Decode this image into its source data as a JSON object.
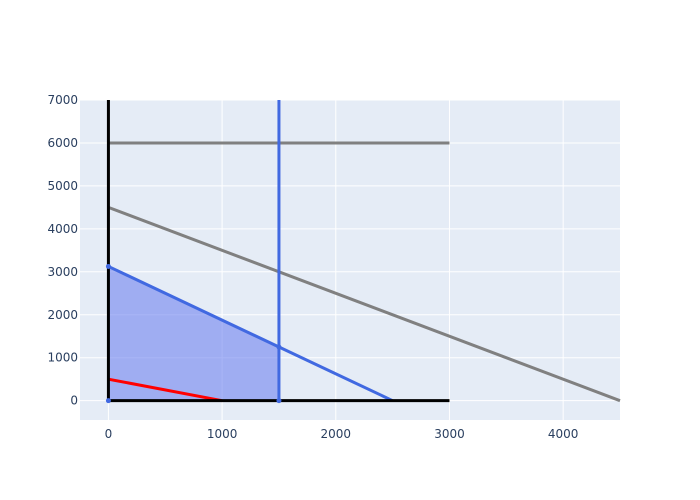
{
  "chart_data": {
    "type": "line",
    "title": "",
    "xlabel": "",
    "ylabel": "",
    "xlim": [
      -250,
      4500
    ],
    "ylim": [
      -450,
      7000
    ],
    "x_ticks": [
      0,
      1000,
      2000,
      3000,
      4000
    ],
    "y_ticks": [
      0,
      1000,
      2000,
      3000,
      4000,
      5000,
      6000,
      7000
    ],
    "grid": true,
    "legend": "none",
    "plot_background": "#e5ecf6",
    "feasible_region": {
      "fill": "#6f84f0",
      "vertices": [
        [
          0,
          0
        ],
        [
          0,
          3125
        ],
        [
          1500,
          1250
        ],
        [
          1500,
          0
        ]
      ]
    },
    "series": [
      {
        "color": "#808080",
        "x": [
          0,
          3000
        ],
        "y": [
          6000,
          6000
        ]
      },
      {
        "color": "#808080",
        "x": [
          0,
          4500
        ],
        "y": [
          4500,
          0
        ]
      },
      {
        "color": "#4169e1",
        "x": [
          1500,
          1500
        ],
        "y": [
          0,
          7000
        ]
      },
      {
        "color": "#4169e1",
        "x": [
          0,
          2500
        ],
        "y": [
          3125,
          0
        ]
      },
      {
        "color": "#ff0000",
        "x": [
          0,
          1000
        ],
        "y": [
          500,
          0
        ]
      },
      {
        "color": "#000000",
        "x": [
          0,
          3000
        ],
        "y": [
          0,
          0
        ]
      },
      {
        "color": "#000000",
        "x": [
          0,
          0
        ],
        "y": [
          0,
          7000
        ]
      }
    ],
    "markers": {
      "color": "#4169e1",
      "points": [
        [
          0,
          0
        ],
        [
          0,
          3125
        ],
        [
          1500,
          1250
        ],
        [
          1500,
          0
        ]
      ]
    }
  }
}
